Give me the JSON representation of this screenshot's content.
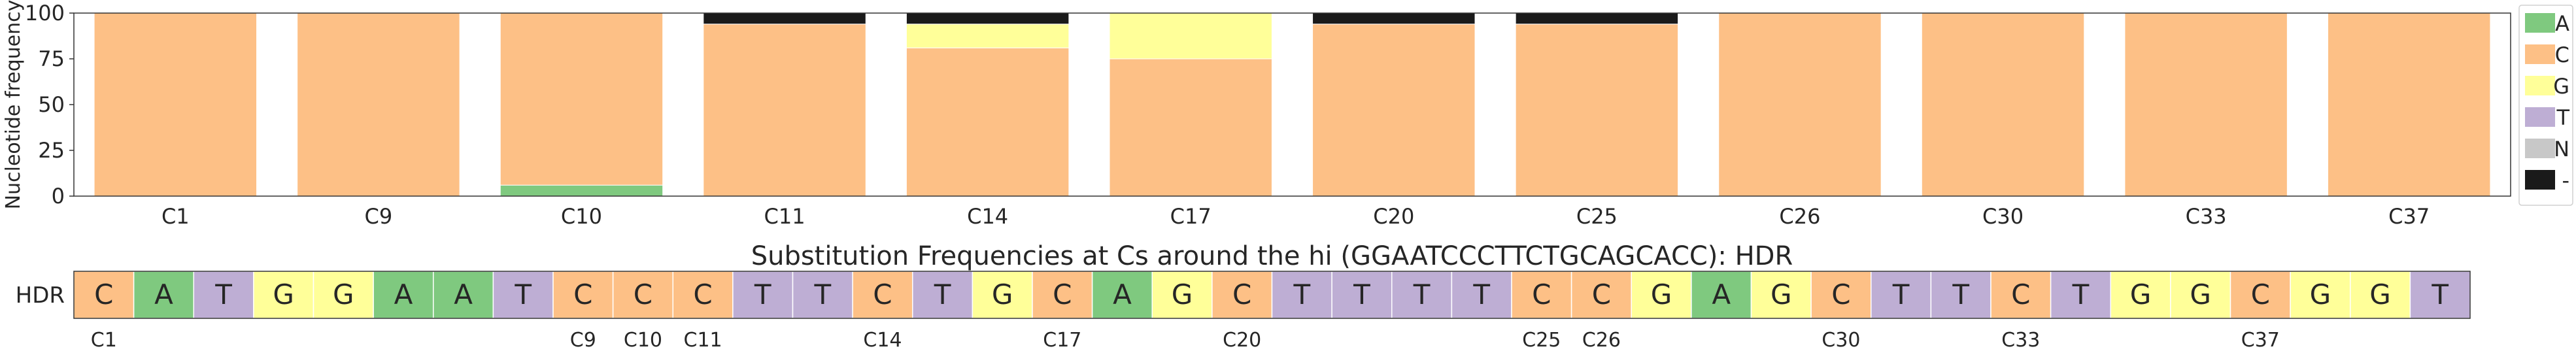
{
  "colors": {
    "A": "#7fc97f",
    "C": "#fdc086",
    "G": "#ffff99",
    "T": "#beaed4",
    "N": "#c8c8c8",
    "-": "#1a1a1a"
  },
  "chart_data": [
    {
      "type": "bar",
      "stacked": true,
      "ylabel": "Nucleotide frequency",
      "ylim": [
        0,
        100
      ],
      "yticks": [
        0,
        25,
        50,
        75,
        100
      ],
      "categories": [
        "C1",
        "C9",
        "C10",
        "C11",
        "C14",
        "C17",
        "C20",
        "C25",
        "C26",
        "C30",
        "C33",
        "C37"
      ],
      "series": [
        {
          "name": "A",
          "values": [
            0,
            0,
            6,
            0,
            0,
            0,
            0,
            0,
            0,
            0,
            0,
            0
          ]
        },
        {
          "name": "C",
          "values": [
            100,
            100,
            94,
            94,
            81,
            75,
            94,
            94,
            100,
            100,
            100,
            100
          ]
        },
        {
          "name": "G",
          "values": [
            0,
            0,
            0,
            0,
            13,
            25,
            0,
            0,
            0,
            0,
            0,
            0
          ]
        },
        {
          "name": "T",
          "values": [
            0,
            0,
            0,
            0,
            0,
            0,
            0,
            0,
            0,
            0,
            0,
            0
          ]
        },
        {
          "name": "N",
          "values": [
            0,
            0,
            0,
            0,
            0,
            0,
            0,
            0,
            0,
            0,
            0,
            0
          ]
        },
        {
          "name": "-",
          "values": [
            0,
            0,
            0,
            6,
            6,
            0,
            6,
            6,
            0,
            0,
            0,
            0
          ]
        }
      ],
      "legend": [
        "A",
        "C",
        "G",
        "T",
        "N",
        "-"
      ],
      "legend_placement": "right",
      "grid": false
    },
    {
      "type": "table",
      "title": "Substitution Frequencies at Cs around the hi (GGAATCCCTTCTGCAGCACC): HDR",
      "row_label": "HDR",
      "sequence": [
        "C",
        "A",
        "T",
        "G",
        "G",
        "A",
        "A",
        "T",
        "C",
        "C",
        "C",
        "T",
        "T",
        "C",
        "T",
        "G",
        "C",
        "A",
        "G",
        "C",
        "T",
        "T",
        "T",
        "T",
        "C",
        "C",
        "G",
        "A",
        "G",
        "C",
        "T",
        "T",
        "C",
        "T",
        "G",
        "G",
        "C",
        "G",
        "G",
        "T"
      ],
      "position_labels": [
        "C1",
        "",
        "",
        "",
        "",
        "",
        "",
        "",
        "C9",
        "C10",
        "C11",
        "",
        "",
        "C14",
        "",
        "",
        "C17",
        "",
        "",
        "C20",
        "",
        "",
        "",
        "",
        "C25",
        "C26",
        "",
        "",
        "",
        "C30",
        "",
        "",
        "C33",
        "",
        "",
        "",
        "C37",
        "",
        "",
        ""
      ]
    }
  ]
}
